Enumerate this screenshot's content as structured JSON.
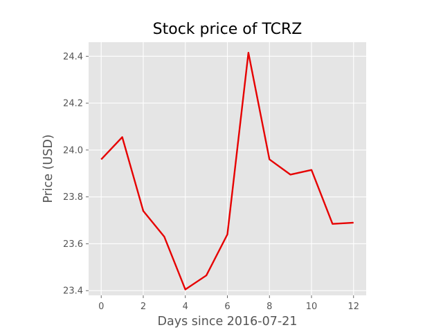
{
  "chart_data": {
    "type": "line",
    "title": "Stock price of TCRZ",
    "xlabel": "Days since 2016-07-21",
    "ylabel": "Price (USD)",
    "xlim": [
      -0.6,
      12.6
    ],
    "ylim": [
      23.38,
      24.46
    ],
    "x_ticks": [
      0,
      2,
      4,
      6,
      8,
      10,
      12
    ],
    "x_tick_labels": [
      "0",
      "2",
      "4",
      "6",
      "8",
      "10",
      "12"
    ],
    "y_ticks": [
      23.4,
      23.6,
      23.8,
      24.0,
      24.2,
      24.4
    ],
    "y_tick_labels": [
      "23.4",
      "23.6",
      "23.8",
      "24.0",
      "24.2",
      "24.4"
    ],
    "grid": true,
    "series": [
      {
        "color": "#e60000",
        "x": [
          0,
          1,
          2,
          3,
          4,
          5,
          6,
          7,
          8,
          9,
          10,
          11,
          12
        ],
        "y": [
          23.96,
          24.055,
          23.74,
          23.63,
          23.405,
          23.465,
          23.64,
          24.415,
          23.96,
          23.895,
          23.915,
          23.685,
          23.69
        ]
      }
    ]
  }
}
